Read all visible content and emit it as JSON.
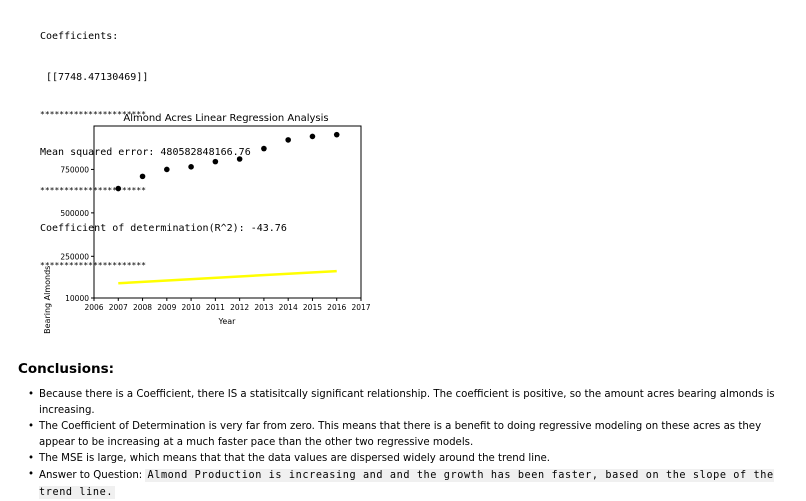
{
  "output": {
    "coef_heading": "Coefficients:",
    "coef_value": " [[7748.47130469]]",
    "separator": "**********************",
    "mse": "Mean squared error: 480582848166.76",
    "r2": "Coefficient of determination(R^2): -43.76"
  },
  "chart_data": {
    "type": "scatter",
    "title": "Almond Acres Linear Regression Analysis",
    "xlabel": "Year",
    "ylabel": "Acres Bearing Almonds",
    "xlim": [
      2006,
      2017
    ],
    "ylim": [
      10000,
      1000000
    ],
    "xticks": [
      "2006",
      "2007",
      "2008",
      "2009",
      "2010",
      "2011",
      "2012",
      "2013",
      "2014",
      "2015",
      "2016",
      "2017"
    ],
    "yticks": [
      "10000",
      "250000",
      "500000",
      "750000"
    ],
    "series": [
      {
        "kind": "scatter",
        "color": "#000000",
        "x": [
          2007,
          2008,
          2009,
          2010,
          2011,
          2012,
          2013,
          2014,
          2015,
          2016
        ],
        "y": [
          640000,
          710000,
          750000,
          765000,
          795000,
          810000,
          870000,
          920000,
          940000,
          950000
        ]
      },
      {
        "kind": "line",
        "color": "#ffff00",
        "x": [
          2007,
          2016
        ],
        "y": [
          95000,
          165000
        ]
      }
    ],
    "grid": false,
    "legend": "none"
  },
  "conclusions": {
    "title": "Conclusions:",
    "b1": "Because there is a Coefficient, there IS a statisitcally significant relationship. The coefficient is positive, so the amount acres bearing almonds is increasing.",
    "b2": "The Coefficient of Determination is very far from zero. This means that there is a benefit to doing regressive modeling on these acres as they appear to be increasing at a much faster pace than the other two regressive models.",
    "b3": "The MSE is large, which means that that the data values are dispersed widely around the trend line.",
    "b4_prefix": "Answer to Question:",
    "b4_code": "Almond Production is increasing and and the growth has been faster, based on the slope of the trend line."
  }
}
